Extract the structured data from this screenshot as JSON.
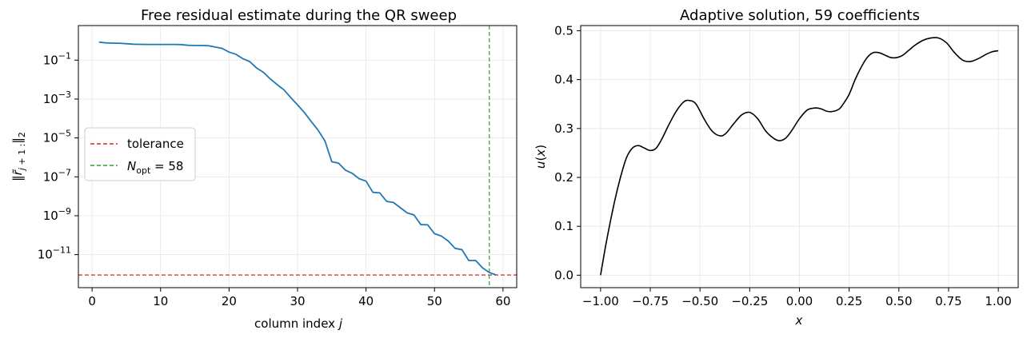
{
  "chart_data": [
    {
      "type": "line",
      "title": "Free residual estimate during the QR sweep",
      "xlabel": "column index j",
      "ylabel": "‖r̃_{j+1:}‖₂",
      "yscale": "log",
      "xlim": [
        -2,
        62
      ],
      "ylim": [
        2e-13,
        6
      ],
      "xticks": [
        0,
        10,
        20,
        30,
        40,
        50,
        60
      ],
      "yticks": [
        {
          "value": 1e-11,
          "base": "10",
          "exp": "−11"
        },
        {
          "value": 1e-09,
          "base": "10",
          "exp": "−9"
        },
        {
          "value": 1e-07,
          "base": "10",
          "exp": "−7"
        },
        {
          "value": 1e-05,
          "base": "10",
          "exp": "−5"
        },
        {
          "value": 0.001,
          "base": "10",
          "exp": "−3"
        },
        {
          "value": 0.1,
          "base": "10",
          "exp": "−1"
        }
      ],
      "grid": true,
      "legend_position": "center-left",
      "series": [
        {
          "color": "#1f77b4",
          "x": [
            1,
            2,
            3,
            4,
            5,
            6,
            7,
            8,
            9,
            10,
            11,
            12,
            13,
            14,
            15,
            16,
            17,
            18,
            19,
            20,
            21,
            22,
            23,
            24,
            25,
            26,
            27,
            28,
            29,
            30,
            31,
            32,
            33,
            34,
            35,
            36,
            37,
            38,
            39,
            40,
            41,
            42,
            43,
            44,
            45,
            46,
            47,
            48,
            49,
            50,
            51,
            52,
            53,
            54,
            55,
            56,
            57,
            58,
            59
          ],
          "y": [
            0.85,
            0.77,
            0.75,
            0.74,
            0.7,
            0.66,
            0.65,
            0.64,
            0.64,
            0.64,
            0.64,
            0.64,
            0.63,
            0.58,
            0.57,
            0.57,
            0.55,
            0.47,
            0.4,
            0.26,
            0.2,
            0.12,
            0.085,
            0.04,
            0.024,
            0.011,
            0.0056,
            0.003,
            0.0012,
            0.0005,
            0.0002,
            7e-05,
            2.5e-05,
            7e-06,
            6e-07,
            5e-07,
            2.2e-07,
            1.5e-07,
            8e-08,
            6e-08,
            1.6e-08,
            1.5e-08,
            5.5e-09,
            4.8e-09,
            2.6e-09,
            1.4e-09,
            1.1e-09,
            3.5e-10,
            3.4e-10,
            1.2e-10,
            9e-11,
            5e-11,
            2.1e-11,
            1.8e-11,
            5e-12,
            5e-12,
            2.1e-12,
            1.2e-12,
            9e-13
          ]
        }
      ],
      "hlines": [
        {
          "name": "tolerance",
          "value": 9e-13,
          "color": "#d62728"
        }
      ],
      "vlines": [
        {
          "name_main": "N",
          "name_sub": "opt",
          "name_rest": " = 58",
          "value": 58,
          "color": "#2ca02c"
        }
      ]
    },
    {
      "type": "line",
      "title": "Adaptive solution, 59 coefficients",
      "xlabel": "x",
      "ylabel": "u(x)",
      "xlim": [
        -1.1,
        1.1
      ],
      "ylim": [
        -0.0255,
        0.5105
      ],
      "xticks": [
        {
          "value": -1.0,
          "label": "−1.00"
        },
        {
          "value": -0.75,
          "label": "−0.75"
        },
        {
          "value": -0.5,
          "label": "−0.50"
        },
        {
          "value": -0.25,
          "label": "−0.25"
        },
        {
          "value": 0.0,
          "label": "0.00"
        },
        {
          "value": 0.25,
          "label": "0.25"
        },
        {
          "value": 0.5,
          "label": "0.50"
        },
        {
          "value": 0.75,
          "label": "0.75"
        },
        {
          "value": 1.0,
          "label": "1.00"
        }
      ],
      "yticks": [
        {
          "value": 0.0,
          "label": "0.0"
        },
        {
          "value": 0.1,
          "label": "0.1"
        },
        {
          "value": 0.2,
          "label": "0.2"
        },
        {
          "value": 0.3,
          "label": "0.3"
        },
        {
          "value": 0.4,
          "label": "0.4"
        },
        {
          "value": 0.5,
          "label": "0.5"
        }
      ],
      "grid": true,
      "series": [
        {
          "color": "#000000",
          "x": [
            -1.0,
            -0.97,
            -0.93,
            -0.9,
            -0.87,
            -0.84,
            -0.81,
            -0.78,
            -0.75,
            -0.72,
            -0.69,
            -0.66,
            -0.62,
            -0.58,
            -0.55,
            -0.52,
            -0.48,
            -0.44,
            -0.4,
            -0.37,
            -0.33,
            -0.29,
            -0.25,
            -0.21,
            -0.17,
            -0.13,
            -0.1,
            -0.07,
            -0.04,
            0.0,
            0.04,
            0.08,
            0.11,
            0.14,
            0.17,
            0.2,
            0.22,
            0.25,
            0.28,
            0.31,
            0.34,
            0.37,
            0.4,
            0.43,
            0.46,
            0.49,
            0.52,
            0.55,
            0.58,
            0.62,
            0.66,
            0.7,
            0.74,
            0.78,
            0.82,
            0.86,
            0.9,
            0.94,
            0.97,
            1.0
          ],
          "y": [
            0.0,
            0.07,
            0.15,
            0.2,
            0.24,
            0.26,
            0.265,
            0.26,
            0.255,
            0.26,
            0.28,
            0.305,
            0.335,
            0.355,
            0.357,
            0.35,
            0.32,
            0.295,
            0.285,
            0.29,
            0.31,
            0.328,
            0.333,
            0.32,
            0.295,
            0.28,
            0.275,
            0.28,
            0.295,
            0.32,
            0.338,
            0.342,
            0.34,
            0.335,
            0.335,
            0.34,
            0.35,
            0.37,
            0.4,
            0.425,
            0.445,
            0.455,
            0.455,
            0.45,
            0.445,
            0.445,
            0.45,
            0.46,
            0.47,
            0.48,
            0.485,
            0.485,
            0.475,
            0.455,
            0.44,
            0.437,
            0.443,
            0.452,
            0.457,
            0.459
          ]
        }
      ]
    }
  ]
}
